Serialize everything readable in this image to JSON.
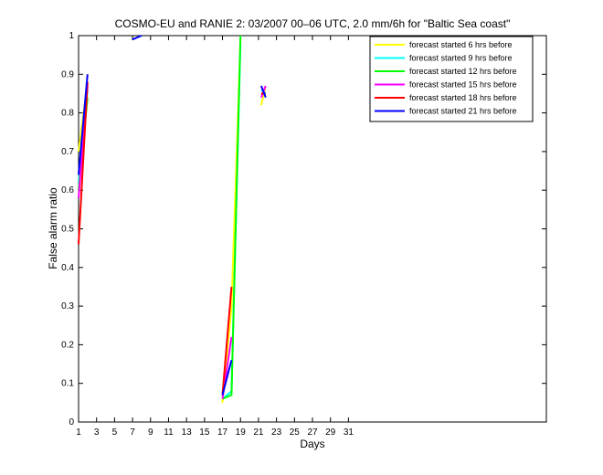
{
  "chart_data": {
    "type": "line",
    "title": "COSMO-EU and RANIE 2: 03/2007 00–06 UTC, 2.0 mm/6h for \"Baltic Sea coast\"",
    "xlabel": "Days",
    "ylabel": "False alarm ratio",
    "xlim": [
      1,
      53
    ],
    "ylim": [
      0,
      1
    ],
    "xticks": [
      1,
      3,
      5,
      7,
      9,
      11,
      13,
      15,
      17,
      19,
      21,
      23,
      25,
      27,
      29,
      31
    ],
    "yticks": [
      0,
      0.1,
      0.2,
      0.3,
      0.4,
      0.5,
      0.6,
      0.7,
      0.8,
      0.9,
      1
    ],
    "grid": false,
    "legend_position": "top-right",
    "series": [
      {
        "name": "forecast started 6 hrs before",
        "color": "#ffff00",
        "segments": [
          [
            [
              1,
              0.7
            ],
            [
              2,
              0.88
            ]
          ],
          [
            [
              17,
              0.05
            ],
            [
              18,
              0.3
            ],
            [
              19,
              0.99
            ]
          ],
          [
            [
              21.3,
              0.82
            ],
            [
              21.8,
              0.87
            ]
          ]
        ]
      },
      {
        "name": "forecast started 9 hrs before",
        "color": "#00ffff",
        "segments": [
          [
            [
              1,
              0.62
            ],
            [
              2,
              0.86
            ]
          ],
          [
            [
              17,
              0.06
            ],
            [
              18,
              0.08
            ],
            [
              19,
              0.98
            ]
          ],
          [
            [
              21.3,
              0.86
            ],
            [
              21.8,
              0.85
            ]
          ]
        ]
      },
      {
        "name": "forecast started 12 hrs before",
        "color": "#00ff00",
        "segments": [
          [
            [
              1,
              0.6
            ],
            [
              2,
              0.84
            ]
          ],
          [
            [
              17,
              0.06
            ],
            [
              18,
              0.07
            ],
            [
              19,
              1.0
            ]
          ]
        ]
      },
      {
        "name": "forecast started 15 hrs before",
        "color": "#ff00ff",
        "segments": [
          [
            [
              1,
              0.58
            ],
            [
              2,
              0.87
            ]
          ],
          [
            [
              17,
              0.06
            ],
            [
              18,
              0.22
            ]
          ],
          [
            [
              21.3,
              0.84
            ],
            [
              21.8,
              0.87
            ]
          ]
        ]
      },
      {
        "name": "forecast started 18 hrs before",
        "color": "#ff0000",
        "segments": [
          [
            [
              1,
              0.46
            ],
            [
              2,
              0.88
            ]
          ],
          [
            [
              17,
              0.07
            ],
            [
              18,
              0.35
            ]
          ],
          [
            [
              21.3,
              0.85
            ],
            [
              21.8,
              0.85
            ]
          ]
        ]
      },
      {
        "name": "forecast started 21 hrs before",
        "color": "#0000ff",
        "segments": [
          [
            [
              1,
              0.64
            ],
            [
              2,
              0.9
            ]
          ],
          [
            [
              7,
              0.99
            ],
            [
              8,
              1.0
            ]
          ],
          [
            [
              17,
              0.07
            ],
            [
              18,
              0.16
            ]
          ],
          [
            [
              21.3,
              0.87
            ],
            [
              21.8,
              0.84
            ]
          ]
        ]
      }
    ]
  }
}
